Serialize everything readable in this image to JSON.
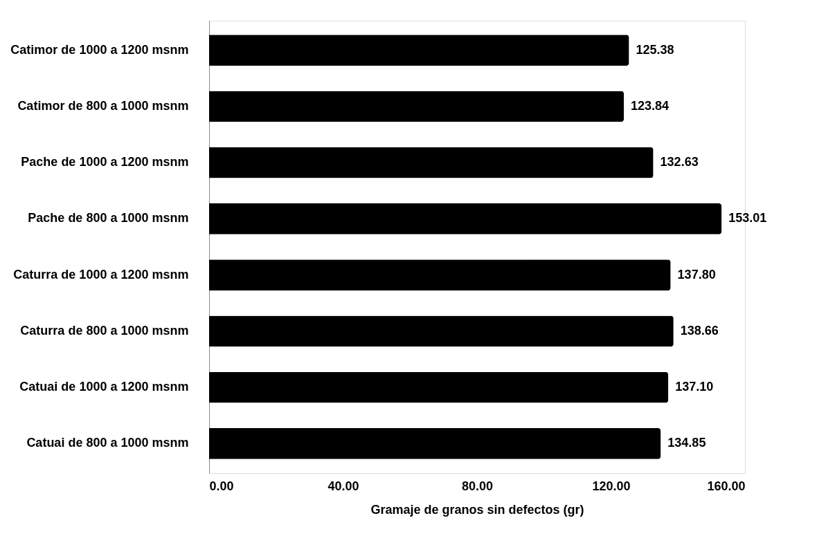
{
  "chart_data": {
    "type": "bar",
    "orientation": "horizontal",
    "xlabel": "Gramaje de granos sin defectos  (gr)",
    "categories": [
      "Catimor de 1000 a 1200 msnm",
      "Catimor de 800 a 1000 msnm",
      "Pache de 1000 a 1200 msnm",
      "Pache de 800 a 1000 msnm",
      "Caturra de 1000 a 1200 msnm",
      "Caturra de 800 a 1000 msnm",
      "Catuai de 1000 a 1200 msnm",
      "Catuai de 800 a 1000 msnm"
    ],
    "values": [
      125.38,
      123.84,
      132.63,
      153.01,
      137.8,
      138.66,
      137.1,
      134.85
    ],
    "color": "#000000",
    "xlim": [
      0,
      160
    ],
    "xticks": [
      {
        "value": 0,
        "label": "0.00"
      },
      {
        "value": 40,
        "label": "40.00"
      },
      {
        "value": 80,
        "label": "80.00"
      },
      {
        "value": 120,
        "label": "120.00"
      },
      {
        "value": 160,
        "label": "160.00"
      }
    ],
    "value_labels": [
      "125.38",
      "123.84",
      "132.63",
      "153.01",
      "137.80",
      "138.66",
      "137.10",
      "134.85"
    ],
    "grid": false
  }
}
